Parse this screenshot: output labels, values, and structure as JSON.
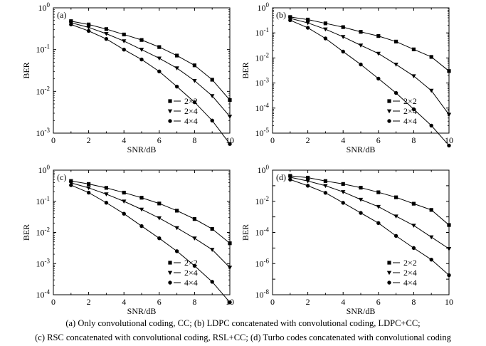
{
  "caption": {
    "line1": "(a)  Only convolutional coding, CC; (b) LDPC concatenated with convolutional coding, LDPC+CC;",
    "line2": "(c) RSC concatenated with convolutional coding, RSL+CC; (d) Turbo codes concatenated with convolutional coding"
  },
  "chart_data": [
    {
      "type": "line",
      "panel_label": "(a)",
      "xlabel": "SNR/dB",
      "ylabel": "BER",
      "xlim": [
        0,
        10
      ],
      "xticks": [
        "0",
        "2",
        "4",
        "6",
        "8",
        "10"
      ],
      "ylim_exp": [
        -3,
        0
      ],
      "yscale": "log",
      "legend": "bottom-right",
      "x": [
        1,
        2,
        3,
        4,
        5,
        6,
        7,
        8,
        9,
        10
      ],
      "series": [
        {
          "name": "2×2",
          "marker": "square",
          "values": [
            0.48,
            0.4,
            0.31,
            0.23,
            0.17,
            0.115,
            0.072,
            0.042,
            0.019,
            0.0062
          ]
        },
        {
          "name": "2×4",
          "marker": "triangle",
          "values": [
            0.44,
            0.34,
            0.24,
            0.16,
            0.1,
            0.062,
            0.036,
            0.018,
            0.0078,
            0.0025
          ]
        },
        {
          "name": "4×4",
          "marker": "circle",
          "values": [
            0.4,
            0.28,
            0.18,
            0.1,
            0.058,
            0.03,
            0.013,
            0.0055,
            0.002,
            0.00055
          ]
        }
      ]
    },
    {
      "type": "line",
      "panel_label": "(b)",
      "xlabel": "SNR/dB",
      "ylabel": "BER",
      "xlim": [
        0,
        10
      ],
      "xticks": [
        "0",
        "2",
        "4",
        "6",
        "8",
        "10"
      ],
      "ylim_exp": [
        -5,
        0
      ],
      "yscale": "log",
      "legend": "bottom-right",
      "x": [
        1,
        2,
        3,
        4,
        5,
        6,
        7,
        8,
        9,
        10
      ],
      "series": [
        {
          "name": "2×2",
          "marker": "square",
          "values": [
            0.43,
            0.34,
            0.24,
            0.17,
            0.11,
            0.075,
            0.045,
            0.022,
            0.011,
            0.003
          ]
        },
        {
          "name": "2×4",
          "marker": "triangle",
          "values": [
            0.38,
            0.25,
            0.14,
            0.07,
            0.032,
            0.015,
            0.0055,
            0.0019,
            0.0005,
            5.5e-05
          ]
        },
        {
          "name": "4×4",
          "marker": "circle",
          "values": [
            0.32,
            0.16,
            0.06,
            0.018,
            0.0055,
            0.0015,
            0.0004,
            9e-05,
            2e-05,
            3.2e-06
          ]
        }
      ]
    },
    {
      "type": "line",
      "panel_label": "(c)",
      "xlabel": "SNR/dB",
      "ylabel": "BER",
      "xlim": [
        0,
        10
      ],
      "xticks": [
        "0",
        "2",
        "4",
        "6",
        "8",
        "10"
      ],
      "ylim_exp": [
        -4,
        0
      ],
      "yscale": "log",
      "legend": "bottom-right",
      "x": [
        1,
        2,
        3,
        4,
        5,
        6,
        7,
        8,
        9,
        10
      ],
      "series": [
        {
          "name": "2×2",
          "marker": "square",
          "values": [
            0.45,
            0.36,
            0.27,
            0.19,
            0.13,
            0.085,
            0.05,
            0.027,
            0.013,
            0.0045
          ]
        },
        {
          "name": "2×4",
          "marker": "triangle",
          "values": [
            0.39,
            0.27,
            0.17,
            0.1,
            0.055,
            0.029,
            0.014,
            0.0065,
            0.0028,
            0.00075
          ]
        },
        {
          "name": "4×4",
          "marker": "circle",
          "values": [
            0.33,
            0.19,
            0.09,
            0.04,
            0.016,
            0.0065,
            0.0025,
            0.00085,
            0.00026,
            5.7e-05
          ]
        }
      ]
    },
    {
      "type": "line",
      "panel_label": "(d)",
      "xlabel": "SNR/dB",
      "ylabel": "BER",
      "xlim": [
        0,
        10
      ],
      "xticks": [
        "0",
        "2",
        "4",
        "6",
        "8",
        "10"
      ],
      "ylim_exp": [
        -8,
        0
      ],
      "yscale": "log",
      "legend": "bottom-right",
      "x": [
        1,
        2,
        3,
        4,
        5,
        6,
        7,
        8,
        9,
        10
      ],
      "series": [
        {
          "name": "2×2",
          "marker": "square",
          "values": [
            0.43,
            0.33,
            0.2,
            0.13,
            0.075,
            0.038,
            0.018,
            0.007,
            0.0028,
            0.0003
          ]
        },
        {
          "name": "2×4",
          "marker": "triangle",
          "values": [
            0.35,
            0.2,
            0.1,
            0.04,
            0.013,
            0.0045,
            0.0011,
            0.00028,
            5e-05,
            9e-06
          ]
        },
        {
          "name": "4×4",
          "marker": "circle",
          "values": [
            0.25,
            0.1,
            0.035,
            0.008,
            0.0018,
            0.0004,
            6e-05,
            1e-05,
            1.8e-06,
            1.8e-07
          ]
        }
      ]
    }
  ]
}
